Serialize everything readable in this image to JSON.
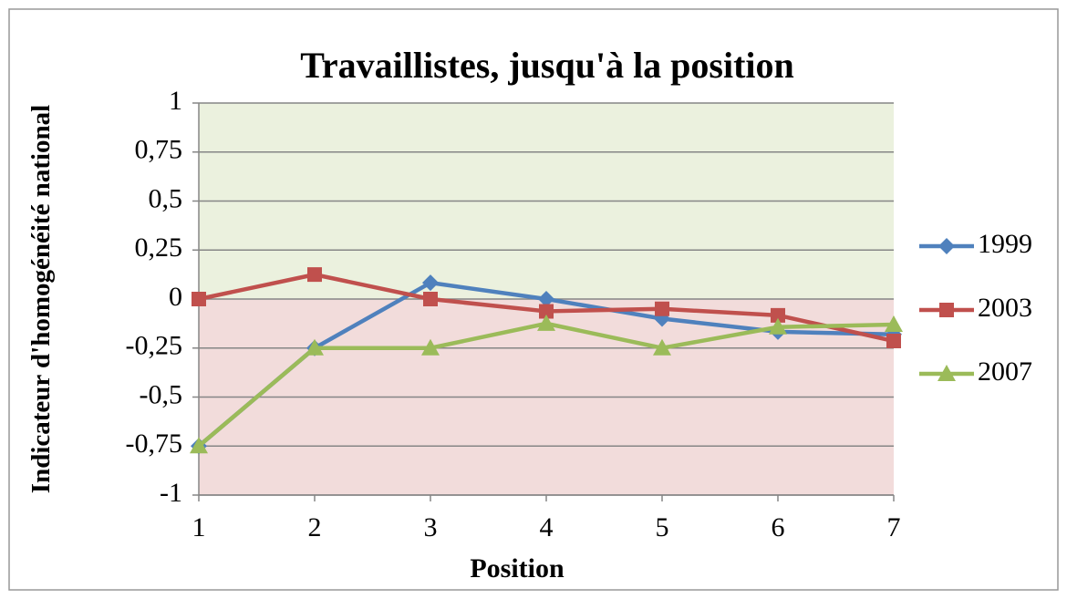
{
  "chart_data": {
    "type": "line",
    "title": "Travaillistes, jusqu'à la position",
    "x_label": "Position",
    "y_label": "Indicateur d'homogénéité national",
    "x": [
      1,
      2,
      3,
      4,
      5,
      6,
      7
    ],
    "series": [
      {
        "name": "1999",
        "color": "#4f81bd",
        "marker": "diamond",
        "values": [
          -0.75,
          -0.25,
          0.083,
          0,
          -0.1,
          -0.167,
          -0.18
        ]
      },
      {
        "name": "2003",
        "color": "#c0504d",
        "marker": "square",
        "values": [
          0,
          0.125,
          0,
          -0.0625,
          -0.05,
          -0.083,
          -0.214
        ]
      },
      {
        "name": "2007",
        "color": "#9bbb59",
        "marker": "triangle",
        "values": [
          -0.75,
          -0.25,
          -0.25,
          -0.125,
          -0.25,
          -0.143,
          -0.13
        ]
      }
    ],
    "xlim": [
      1,
      7
    ],
    "xticks": [
      1,
      2,
      3,
      4,
      5,
      6,
      7
    ],
    "ylim": [
      -1,
      1
    ],
    "yticks": [
      -1,
      {
        "value": -0.75,
        "label": "-0,75"
      },
      {
        "value": -0.5,
        "label": "-0,5"
      },
      {
        "value": -0.25,
        "label": "-0,25"
      },
      0,
      {
        "value": 0.25,
        "label": "0,25"
      },
      {
        "value": 0.5,
        "label": "0,5"
      },
      {
        "value": 0.75,
        "label": "0,75"
      },
      1
    ],
    "grid": true,
    "legend": "right",
    "bands": [
      {
        "from": 0,
        "to": 1,
        "color": "#ebf1de"
      },
      {
        "from": -1,
        "to": 0,
        "color": "#f2dcdb"
      }
    ]
  }
}
